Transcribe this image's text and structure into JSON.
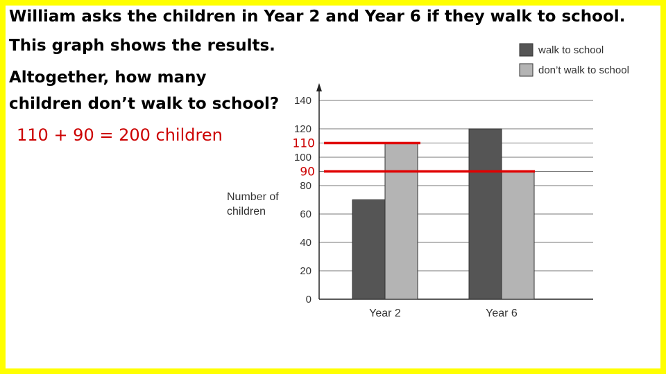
{
  "question": {
    "line1": "William asks the children in Year 2 and Year 6 if they walk to school.",
    "line2": "This graph shows the results.",
    "line3": "Altogether, how many",
    "line4": "children don’t walk to school?"
  },
  "answer": "110 + 90 =  200 children",
  "colors": {
    "frame": "#ffff00",
    "walk": "#555555",
    "dont_walk": "#b4b4b4",
    "annotation": "#e00000"
  },
  "chart_data": {
    "type": "bar",
    "categories": [
      "Year 2",
      "Year 6"
    ],
    "series": [
      {
        "name": "walk to school",
        "values": [
          70,
          120
        ]
      },
      {
        "name": "don’t walk to school",
        "values": [
          110,
          90
        ]
      }
    ],
    "ylabel": "Number of children",
    "ylim": [
      0,
      140
    ],
    "yticks": [
      0,
      20,
      40,
      60,
      80,
      90,
      100,
      110,
      120,
      140
    ],
    "ytick_labels": [
      "0",
      "20",
      "40",
      "60",
      "80",
      "",
      "100",
      "",
      "120",
      "140"
    ],
    "grid": true,
    "legend_position": "top-right",
    "annotations": [
      {
        "label": "110",
        "value": 110
      },
      {
        "label": "90",
        "value": 90
      }
    ]
  }
}
